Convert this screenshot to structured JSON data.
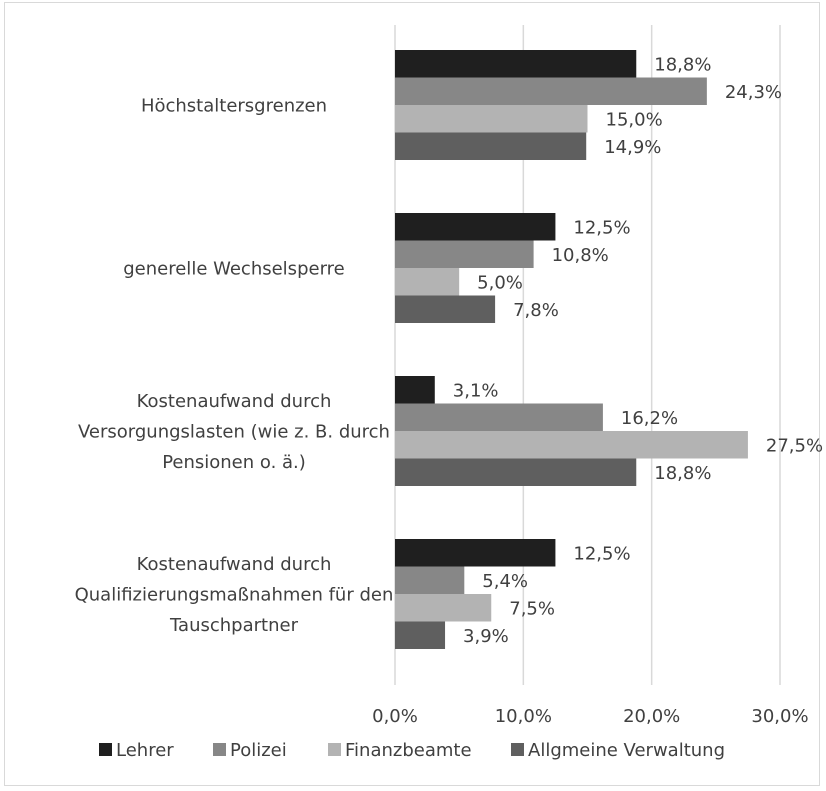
{
  "chart_data": {
    "type": "bar",
    "orientation": "horizontal",
    "categories": [
      [
        "Höchstaltersgrenzen"
      ],
      [
        "generelle Wechselsperre"
      ],
      [
        "Kostenaufwand durch",
        "Versorgungslasten (wie z. B. durch",
        "Pensionen o. ä.)"
      ],
      [
        "Kostenaufwand durch",
        "Qualifizierungsmaßnahmen für den",
        "Tauschpartner"
      ]
    ],
    "series": [
      {
        "name": "Lehrer",
        "color": "#1f1f1f",
        "values": [
          18.8,
          12.5,
          3.1,
          12.5
        ],
        "labels": [
          "18,8%",
          "12,5%",
          "3,1%",
          "12,5%"
        ]
      },
      {
        "name": "Polizei",
        "color": "#878787",
        "values": [
          24.3,
          10.8,
          16.2,
          5.4
        ],
        "labels": [
          "24,3%",
          "10,8%",
          "16,2%",
          "5,4%"
        ]
      },
      {
        "name": "Finanzbeamte",
        "color": "#b3b3b3",
        "values": [
          15.0,
          5.0,
          27.5,
          7.5
        ],
        "labels": [
          "15,0%",
          "5,0%",
          "27,5%",
          "7,5%"
        ]
      },
      {
        "name": "Allgmeine Verwaltung",
        "color": "#5f5f5f",
        "values": [
          14.9,
          7.8,
          18.8,
          3.9
        ],
        "labels": [
          "14,9%",
          "7,8%",
          "18,8%",
          "3,9%"
        ]
      }
    ],
    "xlim": [
      0,
      30
    ],
    "xticks": [
      0,
      10,
      20,
      30
    ],
    "xtick_labels": [
      "0,0%",
      "10,0%",
      "20,0%",
      "30,0%"
    ],
    "grid": "vertical gridlines",
    "legend_position": "bottom",
    "gridline_color": "#d9d9d9",
    "text_color": "#404040"
  }
}
